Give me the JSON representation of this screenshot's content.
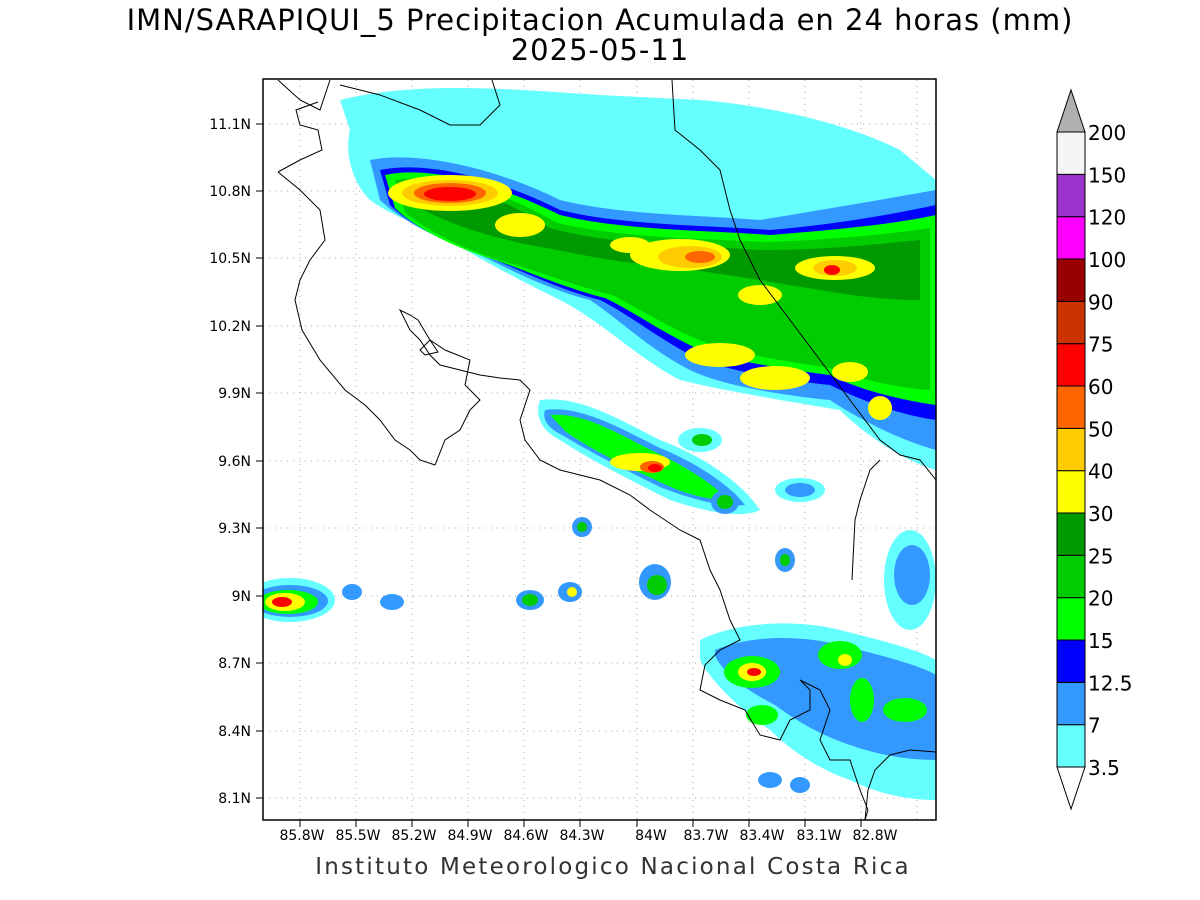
{
  "title": {
    "line1": "IMN/SARAPIQUI_5 Precipitacion Acumulada en 24 horas (mm)",
    "line2": "2025-05-11"
  },
  "footer": "Instituto Meteorologico Nacional Costa Rica",
  "axes": {
    "lat_labels": [
      "11.1N",
      "10.8N",
      "10.5N",
      "10.2N",
      "9.9N",
      "9.6N",
      "9.3N",
      "9N",
      "8.7N",
      "8.4N",
      "8.1N"
    ],
    "lon_labels": [
      "85.8W",
      "85.5W",
      "85.2W",
      "84.9W",
      "84.6W",
      "84.3W",
      "84W",
      "83.7W",
      "83.4W",
      "83.1W",
      "82.8W"
    ],
    "grid": "dotted"
  },
  "colorbar": {
    "levels": [
      {
        "label": "3.5",
        "color": "#66ffff"
      },
      {
        "label": "7",
        "color": "#3399ff"
      },
      {
        "label": "12.5",
        "color": "#0000ff"
      },
      {
        "label": "15",
        "color": "#00ff00"
      },
      {
        "label": "20",
        "color": "#00cc00"
      },
      {
        "label": "25",
        "color": "#009900"
      },
      {
        "label": "30",
        "color": "#ffff00"
      },
      {
        "label": "40",
        "color": "#ffcc00"
      },
      {
        "label": "50",
        "color": "#ff6600"
      },
      {
        "label": "60",
        "color": "#ff0000"
      },
      {
        "label": "75",
        "color": "#cc3300"
      },
      {
        "label": "90",
        "color": "#990000"
      },
      {
        "label": "100",
        "color": "#ff00ff"
      },
      {
        "label": "120",
        "color": "#9933cc"
      },
      {
        "label": "150",
        "color": "#f5f5f5"
      },
      {
        "label": "200",
        "color": "#b0b0b0"
      }
    ]
  }
}
